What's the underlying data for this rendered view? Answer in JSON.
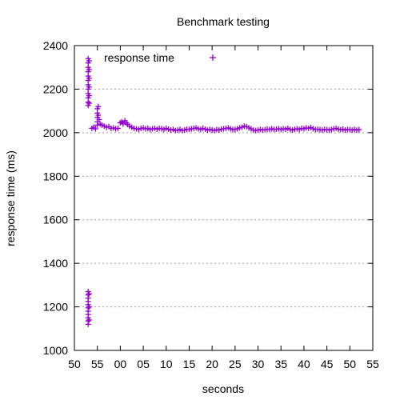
{
  "chart_data": {
    "type": "scatter",
    "title": "Benchmark testing",
    "xlabel": "seconds",
    "ylabel": "response time (ms)",
    "xlim": [
      50,
      113
    ],
    "ylim": [
      1000,
      2400
    ],
    "xticks": [
      {
        "value": 50,
        "label": "50"
      },
      {
        "value": 55,
        "label": "55"
      },
      {
        "value": 60,
        "label": "00"
      },
      {
        "value": 65,
        "label": "05"
      },
      {
        "value": 70,
        "label": "10"
      },
      {
        "value": 75,
        "label": "15"
      },
      {
        "value": 80,
        "label": "20"
      },
      {
        "value": 85,
        "label": "25"
      },
      {
        "value": 90,
        "label": "30"
      },
      {
        "value": 95,
        "label": "35"
      },
      {
        "value": 100,
        "label": "40"
      },
      {
        "value": 105,
        "label": "45"
      },
      {
        "value": 110,
        "label": "50"
      },
      {
        "value": 115,
        "label": "55"
      }
    ],
    "yticks": [
      1000,
      1200,
      1400,
      1600,
      1800,
      2000,
      2200,
      2400
    ],
    "grid": true,
    "legend": "top-left",
    "series": [
      {
        "name": "response time",
        "color": "#9400d3",
        "marker": "plus",
        "points": [
          [
            53.0,
            2340
          ],
          [
            53.0,
            2320
          ],
          [
            53.0,
            2300
          ],
          [
            53.0,
            2280
          ],
          [
            53.0,
            2260
          ],
          [
            53.0,
            2240
          ],
          [
            53.0,
            2220
          ],
          [
            53.0,
            2200
          ],
          [
            53.0,
            2180
          ],
          [
            53.0,
            2160
          ],
          [
            53.0,
            2140
          ],
          [
            53.0,
            2125
          ],
          [
            53.2,
            2330
          ],
          [
            53.2,
            2290
          ],
          [
            53.2,
            2250
          ],
          [
            53.2,
            2210
          ],
          [
            53.2,
            2170
          ],
          [
            53.2,
            2135
          ],
          [
            53.0,
            1270
          ],
          [
            53.0,
            1255
          ],
          [
            53.0,
            1240
          ],
          [
            53.0,
            1225
          ],
          [
            53.0,
            1210
          ],
          [
            53.0,
            1195
          ],
          [
            53.0,
            1180
          ],
          [
            53.0,
            1165
          ],
          [
            53.0,
            1150
          ],
          [
            53.0,
            1135
          ],
          [
            53.0,
            1120
          ],
          [
            53.2,
            1260
          ],
          [
            53.2,
            1200
          ],
          [
            53.2,
            1140
          ],
          [
            53.8,
            2020
          ],
          [
            54.2,
            2025
          ],
          [
            54.6,
            2018
          ],
          [
            55.0,
            2110
          ],
          [
            55.0,
            2090
          ],
          [
            55.0,
            2070
          ],
          [
            55.0,
            2050
          ],
          [
            55.0,
            2035
          ],
          [
            55.2,
            2120
          ],
          [
            55.2,
            2080
          ],
          [
            55.4,
            2060
          ],
          [
            55.6,
            2040
          ],
          [
            56.0,
            2035
          ],
          [
            56.5,
            2030
          ],
          [
            57.0,
            2025
          ],
          [
            57.5,
            2028
          ],
          [
            58.0,
            2020
          ],
          [
            58.5,
            2022
          ],
          [
            59.0,
            2018
          ],
          [
            59.5,
            2020
          ],
          [
            60.0,
            2045
          ],
          [
            60.3,
            2050
          ],
          [
            60.6,
            2040
          ],
          [
            61.0,
            2055
          ],
          [
            61.3,
            2045
          ],
          [
            61.6,
            2038
          ],
          [
            62.0,
            2030
          ],
          [
            62.5,
            2025
          ],
          [
            63.0,
            2020
          ],
          [
            63.5,
            2018
          ],
          [
            64.0,
            2015
          ],
          [
            64.5,
            2020
          ],
          [
            65.0,
            2022
          ],
          [
            65.5,
            2018
          ],
          [
            66.0,
            2020
          ],
          [
            66.5,
            2015
          ],
          [
            67.0,
            2018
          ],
          [
            67.5,
            2020
          ],
          [
            68.0,
            2016
          ],
          [
            68.5,
            2020
          ],
          [
            69.0,
            2018
          ],
          [
            69.5,
            2015
          ],
          [
            70.0,
            2020
          ],
          [
            70.5,
            2016
          ],
          [
            71.0,
            2012
          ],
          [
            71.5,
            2015
          ],
          [
            72.0,
            2010
          ],
          [
            72.5,
            2012
          ],
          [
            73.0,
            2015
          ],
          [
            73.5,
            2010
          ],
          [
            74.0,
            2012
          ],
          [
            74.5,
            2016
          ],
          [
            75.0,
            2015
          ],
          [
            75.5,
            2018
          ],
          [
            76.0,
            2020
          ],
          [
            76.5,
            2022
          ],
          [
            77.0,
            2018
          ],
          [
            77.5,
            2015
          ],
          [
            78.0,
            2020
          ],
          [
            78.5,
            2016
          ],
          [
            79.0,
            2012
          ],
          [
            79.5,
            2015
          ],
          [
            80.0,
            2012
          ],
          [
            80.5,
            2010
          ],
          [
            81.0,
            2014
          ],
          [
            81.5,
            2012
          ],
          [
            82.0,
            2016
          ],
          [
            82.5,
            2018
          ],
          [
            83.0,
            2020
          ],
          [
            83.5,
            2022
          ],
          [
            84.0,
            2018
          ],
          [
            84.5,
            2014
          ],
          [
            85.0,
            2015
          ],
          [
            85.5,
            2018
          ],
          [
            86.0,
            2022
          ],
          [
            86.5,
            2025
          ],
          [
            87.0,
            2030
          ],
          [
            87.5,
            2028
          ],
          [
            88.0,
            2022
          ],
          [
            88.5,
            2018
          ],
          [
            89.0,
            2012
          ],
          [
            89.5,
            2010
          ],
          [
            90.0,
            2012
          ],
          [
            90.5,
            2015
          ],
          [
            91.0,
            2012
          ],
          [
            91.5,
            2014
          ],
          [
            92.0,
            2016
          ],
          [
            92.5,
            2015
          ],
          [
            93.0,
            2018
          ],
          [
            93.5,
            2015
          ],
          [
            94.0,
            2016
          ],
          [
            94.5,
            2018
          ],
          [
            95.0,
            2015
          ],
          [
            95.5,
            2018
          ],
          [
            96.0,
            2016
          ],
          [
            96.5,
            2020
          ],
          [
            97.0,
            2015
          ],
          [
            97.5,
            2012
          ],
          [
            98.0,
            2016
          ],
          [
            98.5,
            2018
          ],
          [
            99.0,
            2015
          ],
          [
            99.5,
            2020
          ],
          [
            100.0,
            2018
          ],
          [
            100.5,
            2022
          ],
          [
            101.0,
            2020
          ],
          [
            101.5,
            2024
          ],
          [
            102.0,
            2018
          ],
          [
            102.5,
            2015
          ],
          [
            103.0,
            2016
          ],
          [
            103.5,
            2014
          ],
          [
            104.0,
            2012
          ],
          [
            104.5,
            2015
          ],
          [
            105.0,
            2014
          ],
          [
            105.5,
            2012
          ],
          [
            106.0,
            2015
          ],
          [
            106.5,
            2018
          ],
          [
            107.0,
            2020
          ],
          [
            107.5,
            2016
          ],
          [
            108.0,
            2014
          ],
          [
            108.5,
            2016
          ],
          [
            109.0,
            2012
          ],
          [
            109.5,
            2015
          ],
          [
            110.0,
            2014
          ],
          [
            110.5,
            2012
          ],
          [
            111.0,
            2015
          ],
          [
            111.5,
            2012
          ],
          [
            112.0,
            2014
          ]
        ]
      }
    ]
  }
}
